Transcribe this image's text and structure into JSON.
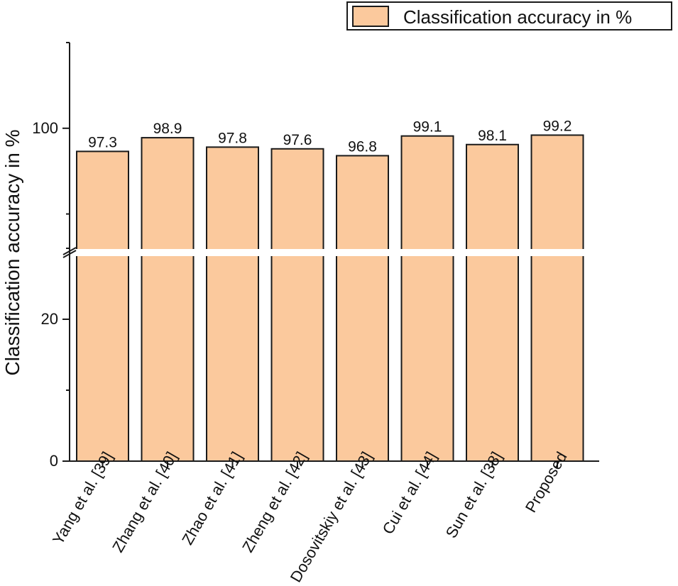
{
  "chart_data": {
    "type": "bar",
    "title": "",
    "xlabel": "",
    "ylabel": "Classification accuracy in %",
    "legend": {
      "label": "Classification accuracy in %",
      "placement": "top-right"
    },
    "categories": [
      "Yang et al. [39]",
      "Zhang et al. [40]",
      "Zhao et al. [41]",
      "Zheng et al. [42]",
      "Dosovitskiy et al. [43]",
      "Cui et al. [44]",
      "Sun et al. [38]",
      "Proposed"
    ],
    "values": [
      97.3,
      98.9,
      97.8,
      97.6,
      96.8,
      99.1,
      98.1,
      99.2
    ],
    "value_labels": [
      "97.3",
      "98.9",
      "97.8",
      "97.6",
      "96.8",
      "99.1",
      "98.1",
      "99.2"
    ],
    "axis_break": {
      "lower_segment": [
        0,
        30
      ],
      "upper_segment": [
        85,
        110
      ]
    },
    "yticks": [
      {
        "value": 0,
        "label": "0"
      },
      {
        "value": 20,
        "label": "20"
      },
      {
        "value": 100,
        "label": "100"
      }
    ],
    "grid": false
  },
  "colors": {
    "bar_fill": "#fbc99d",
    "bar_edge": "#1a1a1a",
    "axis": "#1a1a1a"
  }
}
